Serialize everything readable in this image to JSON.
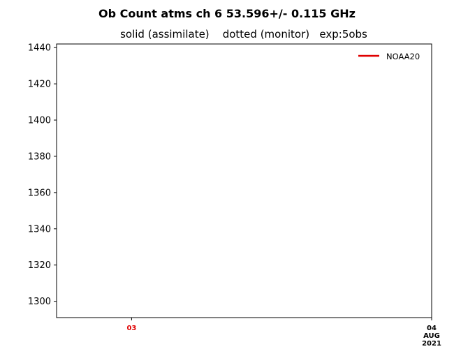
{
  "chart_data": {
    "type": "line",
    "title": "Ob Count atms ch 6 53.596+/- 0.115 GHz",
    "subtitle": "solid (assimilate)    dotted (monitor)   exp:5obs",
    "xlabel": "",
    "ylabel": "",
    "ylim": [
      1291,
      1442
    ],
    "yticks": [
      1300,
      1320,
      1340,
      1360,
      1380,
      1400,
      1420,
      1440
    ],
    "xlim": [
      "2021-08-02T18:00",
      "2021-08-04T00:00"
    ],
    "xticks": [
      {
        "value": "2021-08-03T00:00",
        "lines": [
          "03"
        ],
        "color": "#e00000"
      },
      {
        "value": "2021-08-04T00:00",
        "lines": [
          "04",
          "AUG",
          "2021"
        ],
        "color": "#000000"
      }
    ],
    "grid": false,
    "legend": {
      "location": "upper right",
      "entries": [
        {
          "name": "NOAA20",
          "color": "#e00000",
          "style": "solid"
        }
      ]
    },
    "series": [
      {
        "name": "NOAA20",
        "color": "#e00000",
        "style": "solid",
        "x": [],
        "y": []
      }
    ]
  }
}
